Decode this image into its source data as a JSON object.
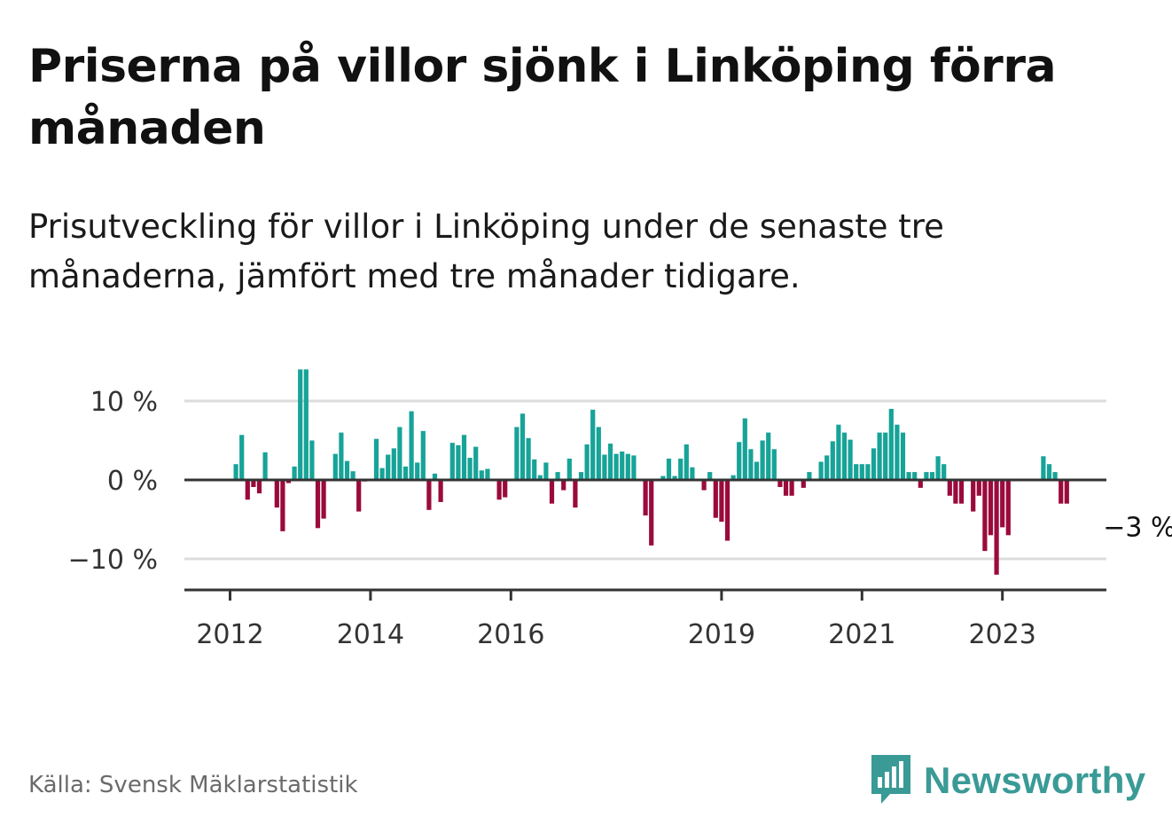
{
  "title": "Priserna på villor sjönk i Linköping förra månaden",
  "subtitle": "Prisutveckling för villor i Linköping under de senaste tre månaderna, jämfört med tre månader tidigare.",
  "source": "Källa: Svensk Mäklarstatistik",
  "brand": {
    "name": "Newsworthy",
    "icon": "newsworthy-logo-icon",
    "color": "#3a9a96"
  },
  "colors": {
    "positive": "#17a398",
    "negative": "#9b0a3c",
    "axis": "#333333",
    "grid": "#dcdcdc"
  },
  "chart_data": {
    "type": "bar",
    "title": "",
    "xlabel": "",
    "ylabel": "",
    "ylim": [
      -14,
      14
    ],
    "grid": true,
    "yticks": [
      {
        "value": 10,
        "label": "10 %"
      },
      {
        "value": 0,
        "label": "0 %"
      },
      {
        "value": -10,
        "label": "−10 %"
      }
    ],
    "xticks": [
      {
        "label": "2012",
        "index": 0
      },
      {
        "label": "2014",
        "index": 24
      },
      {
        "label": "2016",
        "index": 48
      },
      {
        "label": "2019",
        "index": 84
      },
      {
        "label": "2021",
        "index": 108
      },
      {
        "label": "2023",
        "index": 132
      }
    ],
    "start": "2012-01",
    "values": [
      0,
      2,
      5.7,
      -2.5,
      -0.9,
      -1.7,
      3.5,
      0,
      -3.5,
      -6.5,
      -0.4,
      1.7,
      14,
      14,
      5,
      -6.1,
      -4.9,
      0,
      3.3,
      6,
      2.4,
      1.1,
      -4,
      -0.2,
      0,
      5.2,
      1.5,
      3.2,
      4,
      6.7,
      1.7,
      8.7,
      2.2,
      6.2,
      -3.8,
      0.8,
      -2.8,
      0,
      4.7,
      4.4,
      5.7,
      2.8,
      4.2,
      1.2,
      1.4,
      0,
      -2.5,
      -2.2,
      0,
      6.7,
      8.4,
      5.3,
      2.6,
      0.6,
      2.2,
      -3,
      1,
      -1.3,
      2.7,
      -3.5,
      1,
      4.5,
      8.9,
      6.7,
      3.2,
      4.6,
      3.3,
      3.6,
      3.3,
      3.1,
      0,
      -4.5,
      -8.3,
      0,
      0.5,
      2.7,
      0.5,
      2.7,
      4.5,
      1.6,
      0,
      -1.3,
      1,
      -4.8,
      -5.3,
      -7.7,
      0.6,
      4.8,
      7.8,
      3.9,
      2.3,
      5,
      6,
      3.9,
      -0.9,
      -2,
      -2,
      0,
      -1,
      1,
      0,
      2.3,
      3.1,
      4.9,
      7,
      6,
      5.1,
      2,
      2,
      2,
      4,
      6,
      6,
      9,
      7,
      6,
      1,
      1,
      -1,
      1,
      1,
      3,
      2,
      -2,
      -3,
      -3,
      0,
      -4,
      -2,
      -9,
      -7,
      -12,
      -6,
      -7,
      0,
      0,
      0,
      0,
      0,
      3,
      2,
      1,
      -3,
      -3
    ],
    "annotation": {
      "text": "−3 %",
      "value": -3
    }
  }
}
